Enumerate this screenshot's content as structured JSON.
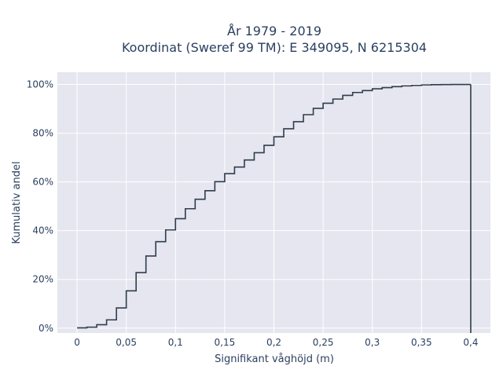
{
  "chart_data": {
    "type": "line",
    "title_line1": "År 1979 - 2019",
    "title_line2": "Koordinat (Sweref 99 TM): E 349095, N 6215304",
    "xlabel": "Signifikant våghöjd (m)",
    "ylabel": "Kumulativ andel",
    "xlim": [
      -0.02,
      0.42
    ],
    "ylim": [
      -0.02,
      1.05
    ],
    "xticks": [
      0,
      0.05,
      0.1,
      0.15,
      0.2,
      0.25,
      0.3,
      0.35,
      0.4
    ],
    "xtick_labels": [
      "0",
      "0,05",
      "0,1",
      "0,15",
      "0,2",
      "0,25",
      "0,3",
      "0,35",
      "0,4"
    ],
    "yticks": [
      0,
      0.2,
      0.4,
      0.6,
      0.8,
      1.0
    ],
    "ytick_labels": [
      "0%",
      "20%",
      "40%",
      "60%",
      "80%",
      "100%"
    ],
    "grid": true,
    "line_color": "#2f3d4c",
    "background": "#e5e6ef",
    "series": [
      {
        "step": "post",
        "x": [
          0,
          0.01,
          0.02,
          0.03,
          0.04,
          0.05,
          0.06,
          0.07,
          0.08,
          0.09,
          0.1,
          0.11,
          0.12,
          0.13,
          0.14,
          0.15,
          0.16,
          0.17,
          0.18,
          0.19,
          0.2,
          0.21,
          0.22,
          0.23,
          0.24,
          0.25,
          0.26,
          0.27,
          0.28,
          0.29,
          0.3,
          0.31,
          0.32,
          0.33,
          0.34,
          0.35,
          0.36,
          0.37,
          0.38,
          0.39,
          0.4
        ],
        "y": [
          0.001,
          0.004,
          0.014,
          0.034,
          0.083,
          0.153,
          0.228,
          0.296,
          0.355,
          0.403,
          0.449,
          0.49,
          0.529,
          0.564,
          0.601,
          0.634,
          0.661,
          0.69,
          0.72,
          0.75,
          0.785,
          0.818,
          0.847,
          0.876,
          0.902,
          0.923,
          0.94,
          0.955,
          0.967,
          0.975,
          0.982,
          0.987,
          0.991,
          0.994,
          0.996,
          0.998,
          0.999,
          0.9995,
          1.0,
          1.0,
          1.0
        ]
      }
    ]
  }
}
